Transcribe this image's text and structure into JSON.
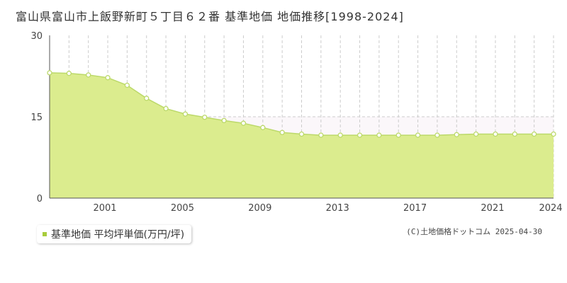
{
  "title": "富山県富山市上飯野新町５丁目６２番 基準地価 地価推移[1998-2024]",
  "legend_label": "基準地価 平均坪単価(万円/坪)",
  "copyright": "(C)土地価格ドットコム 2025-04-30",
  "colors": {
    "fill": "#dbec8e",
    "line": "#bcd96a",
    "marker_stroke": "#bcd96a",
    "marker_fill": "#ffffff",
    "grid": "#cccccc",
    "legend_swatch": "#a8cc3c"
  },
  "chart_data": {
    "type": "area",
    "x": [
      1998,
      1999,
      2000,
      2001,
      2002,
      2003,
      2004,
      2005,
      2006,
      2007,
      2008,
      2009,
      2010,
      2011,
      2012,
      2013,
      2014,
      2015,
      2016,
      2017,
      2018,
      2019,
      2020,
      2021,
      2022,
      2023,
      2024
    ],
    "series": [
      {
        "values": [
          23.1,
          23.0,
          22.7,
          22.2,
          20.8,
          18.4,
          16.5,
          15.5,
          14.9,
          14.3,
          13.8,
          13.0,
          12.1,
          11.8,
          11.6,
          11.6,
          11.6,
          11.6,
          11.6,
          11.6,
          11.6,
          11.7,
          11.8,
          11.8,
          11.8,
          11.8,
          11.8
        ]
      }
    ],
    "x_tick_labels": [
      "2001",
      "2005",
      "2009",
      "2013",
      "2017",
      "2021",
      "2024"
    ],
    "y_tick_labels": [
      "0",
      "15",
      "30"
    ],
    "ylim": [
      0,
      30
    ],
    "xlim": [
      1998,
      2024
    ],
    "grid": "vertical-dashed-every-year, horizontal-dashed-at-15",
    "legend_position": "bottom-left"
  }
}
